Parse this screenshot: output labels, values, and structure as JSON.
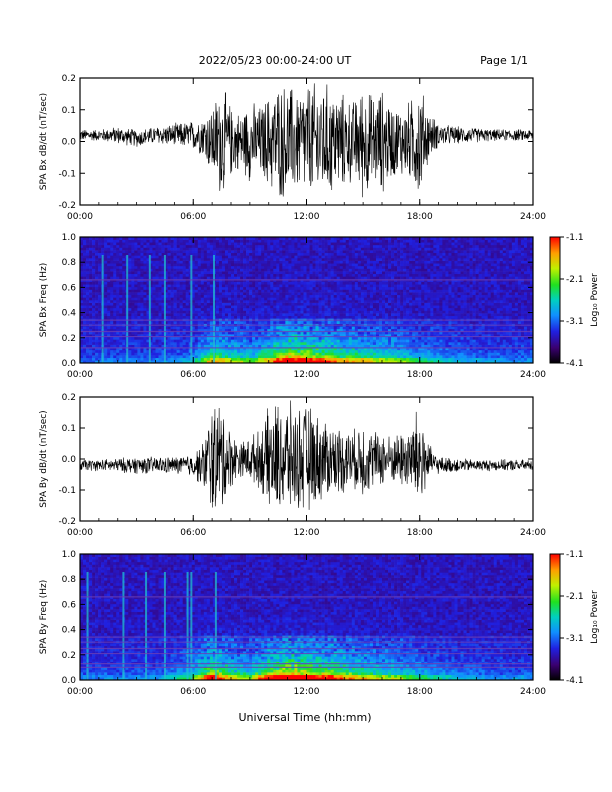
{
  "header": {
    "date_range": "2022/05/23  00:00-24:00 UT",
    "page": "Page 1/1"
  },
  "footer": {
    "xlabel": "Universal Time (hh:mm)"
  },
  "colorbar": {
    "label": "Log₁₀ Power",
    "ticks": [
      "-1.1",
      "-2.1",
      "-3.1",
      "-4.1"
    ],
    "range": [
      -4.1,
      -1.1
    ]
  },
  "chart_data": [
    {
      "type": "line",
      "title": "",
      "ylabel": "SPA Bx dB/dt (nT/sec)",
      "xlabel": "",
      "xlim": [
        "00:00",
        "24:00"
      ],
      "ylim": [
        -0.2,
        0.2
      ],
      "x_ticks": [
        "00:00",
        "06:00",
        "12:00",
        "18:00",
        "24:00"
      ],
      "y_ticks": [
        "-0.2",
        "-0.1",
        "0.0",
        "0.1",
        "0.2"
      ],
      "series": [
        {
          "x_hours": [
            0,
            1,
            2,
            3,
            4,
            5,
            6,
            6.5,
            7,
            7.5,
            8,
            8.5,
            9,
            9.5,
            10,
            10.5,
            11,
            11.5,
            12,
            12.5,
            13,
            13.5,
            14,
            14.5,
            15,
            15.5,
            16,
            16.5,
            17,
            17.5,
            18,
            18.5,
            19,
            20,
            21,
            22,
            23,
            24
          ],
          "amplitude": [
            0.02,
            0.02,
            0.03,
            0.03,
            0.03,
            0.04,
            0.05,
            0.07,
            0.12,
            0.2,
            0.12,
            0.1,
            0.14,
            0.12,
            0.16,
            0.2,
            0.2,
            0.18,
            0.2,
            0.2,
            0.2,
            0.18,
            0.16,
            0.14,
            0.2,
            0.16,
            0.18,
            0.13,
            0.12,
            0.14,
            0.2,
            0.08,
            0.04,
            0.03,
            0.025,
            0.02,
            0.02,
            0.02
          ],
          "offset": [
            0.02,
            0.02,
            0.02,
            0.01,
            0.02,
            0.02,
            0.02,
            0.02,
            0.0,
            0.0,
            0.0,
            0.0,
            0.0,
            0.0,
            0.0,
            0.0,
            0.0,
            0.0,
            0.0,
            0.0,
            0.0,
            0.0,
            0.0,
            0.0,
            0.0,
            0.0,
            0.0,
            0.0,
            0.0,
            0.0,
            0.0,
            0.02,
            0.02,
            0.02,
            0.02,
            0.02,
            0.02,
            0.02
          ]
        }
      ]
    },
    {
      "type": "heatmap",
      "title": "",
      "ylabel": "SPA Bx Freq (Hz)",
      "xlim": [
        "00:00",
        "24:00"
      ],
      "ylim": [
        0.0,
        1.0
      ],
      "x_ticks": [
        "00:00",
        "06:00",
        "12:00",
        "18:00",
        "24:00"
      ],
      "y_ticks": [
        "0.0",
        "0.2",
        "0.4",
        "0.6",
        "0.8",
        "1.0"
      ],
      "activity_hours": [
        0,
        2,
        4,
        6,
        7,
        8,
        9,
        10,
        11,
        12,
        13,
        14,
        15,
        16,
        17,
        18,
        20,
        22,
        24
      ],
      "activity_level": [
        0.1,
        0.12,
        0.12,
        0.2,
        0.55,
        0.45,
        0.35,
        0.55,
        0.8,
        0.75,
        0.65,
        0.55,
        0.5,
        0.45,
        0.4,
        0.3,
        0.2,
        0.15,
        0.15
      ],
      "vertical_lines_hours": [
        1.2,
        2.5,
        3.7,
        4.5,
        5.9,
        7.1
      ],
      "horizontal_lines_hz": [
        0.12,
        0.21,
        0.25,
        0.3,
        0.34,
        0.66
      ]
    },
    {
      "type": "line",
      "title": "",
      "ylabel": "SPA By dB/dt (nT/sec)",
      "xlabel": "",
      "xlim": [
        "00:00",
        "24:00"
      ],
      "ylim": [
        -0.2,
        0.2
      ],
      "x_ticks": [
        "00:00",
        "06:00",
        "12:00",
        "18:00",
        "24:00"
      ],
      "y_ticks": [
        "-0.2",
        "-0.1",
        "0.0",
        "0.1",
        "0.2"
      ],
      "series": [
        {
          "x_hours": [
            0,
            1,
            2,
            3,
            4,
            5,
            6,
            6.5,
            7,
            7.5,
            8,
            8.5,
            9,
            9.5,
            10,
            10.5,
            11,
            11.5,
            12,
            12.5,
            13,
            13.5,
            14,
            14.5,
            15,
            15.5,
            16,
            16.5,
            17,
            17.5,
            18,
            18.5,
            19,
            20,
            21,
            22,
            23,
            24
          ],
          "amplitude": [
            0.02,
            0.02,
            0.025,
            0.03,
            0.03,
            0.03,
            0.04,
            0.08,
            0.2,
            0.2,
            0.1,
            0.06,
            0.08,
            0.1,
            0.18,
            0.2,
            0.2,
            0.18,
            0.2,
            0.16,
            0.14,
            0.12,
            0.12,
            0.1,
            0.14,
            0.1,
            0.1,
            0.08,
            0.1,
            0.12,
            0.2,
            0.06,
            0.03,
            0.025,
            0.02,
            0.02,
            0.02,
            0.02
          ],
          "offset": [
            -0.02,
            -0.02,
            -0.02,
            -0.02,
            -0.02,
            -0.02,
            -0.02,
            -0.02,
            0.0,
            0.0,
            0.0,
            0.0,
            0.0,
            0.0,
            0.0,
            0.0,
            0.0,
            0.0,
            0.0,
            0.0,
            0.0,
            0.0,
            0.0,
            0.0,
            0.0,
            0.0,
            0.0,
            0.0,
            0.0,
            0.0,
            0.0,
            -0.01,
            -0.02,
            -0.02,
            -0.02,
            -0.02,
            -0.02,
            -0.02
          ]
        }
      ]
    },
    {
      "type": "heatmap",
      "title": "",
      "ylabel": "SPA By Freq (Hz)",
      "xlim": [
        "00:00",
        "24:00"
      ],
      "ylim": [
        0.0,
        1.0
      ],
      "x_ticks": [
        "00:00",
        "06:00",
        "12:00",
        "18:00",
        "24:00"
      ],
      "y_ticks": [
        "0.0",
        "0.2",
        "0.4",
        "0.6",
        "0.8",
        "1.0"
      ],
      "activity_hours": [
        0,
        2,
        4,
        6,
        7,
        8,
        9,
        10,
        11,
        12,
        13,
        14,
        15,
        16,
        17,
        18,
        20,
        22,
        24
      ],
      "activity_level": [
        0.12,
        0.14,
        0.14,
        0.35,
        0.75,
        0.5,
        0.4,
        0.7,
        0.85,
        0.8,
        0.7,
        0.6,
        0.5,
        0.45,
        0.4,
        0.3,
        0.2,
        0.15,
        0.15
      ],
      "vertical_lines_hours": [
        0.4,
        2.3,
        3.5,
        4.5,
        5.7,
        5.9,
        7.2
      ],
      "horizontal_lines_hz": [
        0.1,
        0.13,
        0.21,
        0.25,
        0.3,
        0.34,
        0.66
      ]
    }
  ]
}
